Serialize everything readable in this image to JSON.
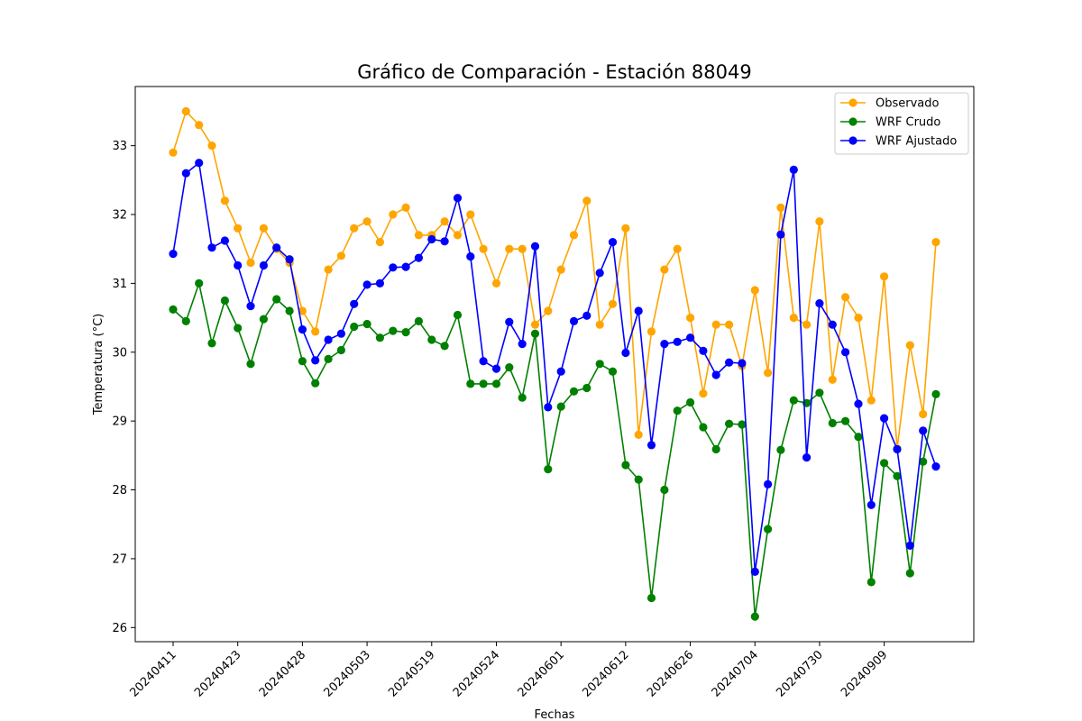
{
  "chart_data": {
    "type": "line",
    "title": "Gráfico de Comparación - Estación 88049",
    "xlabel": "Fechas",
    "ylabel": "Temperatura (°C)",
    "ylim": [
      25.8,
      33.9
    ],
    "yticks": [
      26,
      27,
      28,
      29,
      30,
      31,
      32,
      33
    ],
    "legend_position": "top-right",
    "grid": false,
    "x_tick_labels": [
      {
        "index": 0,
        "label": "20240411"
      },
      {
        "index": 5,
        "label": "20240423"
      },
      {
        "index": 10,
        "label": "20240428"
      },
      {
        "index": 15,
        "label": "20240503"
      },
      {
        "index": 20,
        "label": "20240519"
      },
      {
        "index": 25,
        "label": "20240524"
      },
      {
        "index": 30,
        "label": "20240601"
      },
      {
        "index": 35,
        "label": "20240612"
      },
      {
        "index": 40,
        "label": "20240626"
      },
      {
        "index": 45,
        "label": "20240704"
      },
      {
        "index": 50,
        "label": "20240730"
      },
      {
        "index": 55,
        "label": "20240909"
      }
    ],
    "series": [
      {
        "name": "Observado",
        "color": "#ffa500",
        "values": [
          32.9,
          33.5,
          33.3,
          33.0,
          32.2,
          31.8,
          31.3,
          31.8,
          31.5,
          31.3,
          30.6,
          30.3,
          31.2,
          31.4,
          31.8,
          31.9,
          31.6,
          32.0,
          32.1,
          31.7,
          31.7,
          31.9,
          31.7,
          32.0,
          31.5,
          31.0,
          31.5,
          31.5,
          30.4,
          30.6,
          31.2,
          31.7,
          32.2,
          30.4,
          30.7,
          31.8,
          28.8,
          30.3,
          31.2,
          31.5,
          30.5,
          29.4,
          30.4,
          30.4,
          29.8,
          30.9,
          29.7,
          32.1,
          30.5,
          30.4,
          31.9,
          29.6,
          30.8,
          30.5,
          29.3,
          31.1,
          28.6,
          30.1,
          29.1,
          31.6
        ]
      },
      {
        "name": "WRF Crudo",
        "color": "#008000",
        "values": [
          30.62,
          30.45,
          31.0,
          30.13,
          30.75,
          30.35,
          29.83,
          30.48,
          30.77,
          30.6,
          29.87,
          29.55,
          29.9,
          30.03,
          30.37,
          30.41,
          30.21,
          30.31,
          30.29,
          30.45,
          30.18,
          30.09,
          30.54,
          29.54,
          29.54,
          29.54,
          29.78,
          29.34,
          30.27,
          28.3,
          29.21,
          29.43,
          29.48,
          29.83,
          29.72,
          28.36,
          28.15,
          26.43,
          28.0,
          29.15,
          29.27,
          28.91,
          28.59,
          28.96,
          28.95,
          26.16,
          27.43,
          28.58,
          29.3,
          29.26,
          29.41,
          28.97,
          29.0,
          28.77,
          26.66,
          28.39,
          28.2,
          26.79,
          28.41,
          29.39
        ]
      },
      {
        "name": "WRF Ajustado",
        "color": "#0000ff",
        "values": [
          31.43,
          32.6,
          32.75,
          31.52,
          31.62,
          31.26,
          30.67,
          31.26,
          31.52,
          31.35,
          30.33,
          29.88,
          30.18,
          30.27,
          30.7,
          30.98,
          31.0,
          31.23,
          31.24,
          31.37,
          31.64,
          31.61,
          32.24,
          31.39,
          29.87,
          29.76,
          30.44,
          30.12,
          31.54,
          29.2,
          29.72,
          30.45,
          30.53,
          31.15,
          31.6,
          29.99,
          30.6,
          28.65,
          30.12,
          30.15,
          30.21,
          30.02,
          29.67,
          29.85,
          29.84,
          26.81,
          28.08,
          31.71,
          32.65,
          28.47,
          30.71,
          30.4,
          30.0,
          29.25,
          27.78,
          29.04,
          28.59,
          27.19,
          28.86,
          28.34
        ]
      }
    ]
  }
}
